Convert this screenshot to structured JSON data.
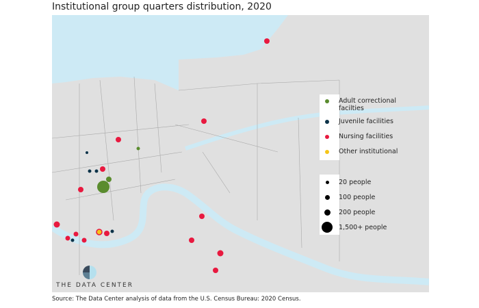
{
  "title": "Institutional group quarters distribution, 2020",
  "source": "Source: The Data Center analysis of data from the U.S. Census Bureau: 2020 Census.",
  "brand": "THE DATA CENTER",
  "colors": {
    "land": "#e0e0e0",
    "water": "#cdeaf5",
    "adult": "#5a8c2e",
    "juvenile": "#0d3349",
    "nursing": "#e8193f",
    "other": "#f5c518"
  },
  "legend": {
    "categories": [
      {
        "label": "Adult correctional\nfacilties",
        "key": "adult"
      },
      {
        "label": "Juvenile facilities",
        "key": "juvenile"
      },
      {
        "label": "Nursing facilities",
        "key": "nursing"
      },
      {
        "label": "Other institutional",
        "key": "other"
      }
    ],
    "sizes": [
      {
        "label": "20 people",
        "value": 20
      },
      {
        "label": "100 people",
        "value": 100
      },
      {
        "label": "200 people",
        "value": 200
      },
      {
        "label": "1,500+ people",
        "value": 1500
      }
    ]
  }
}
